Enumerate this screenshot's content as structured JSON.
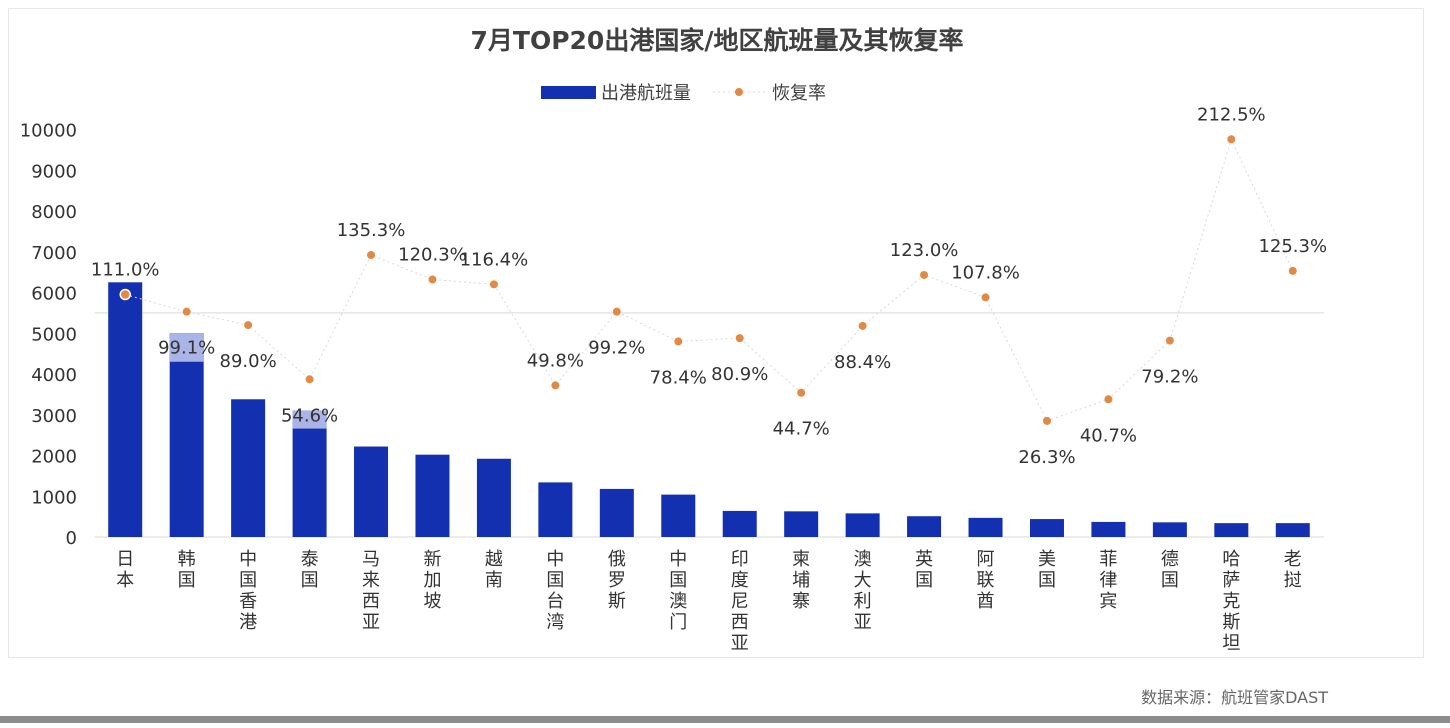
{
  "source_note": "数据来源：航班管家DAST",
  "chart_data": {
    "type": "bar",
    "title": "7月TOP20出港国家/地区航班量及其恢复率",
    "legend_position": "top",
    "grid": "y-reference-line",
    "ylim": [
      0,
      10000
    ],
    "y_ticks": [
      "0",
      "1000",
      "2000",
      "3000",
      "4000",
      "5000",
      "6000",
      "7000",
      "8000",
      "9000",
      "10000"
    ],
    "categories": [
      "日本",
      "韩国",
      "中国香港",
      "泰国",
      "马来西亚",
      "新加坡",
      "越南",
      "中国台湾",
      "俄罗斯",
      "中国澳门",
      "印度尼西亚",
      "柬埔寨",
      "澳大利亚",
      "英国",
      "阿联酋",
      "美国",
      "菲律宾",
      "德国",
      "哈萨克斯坦",
      "老挝"
    ],
    "series": [
      {
        "name": "出港航班量",
        "type": "bar",
        "color": "#1230b0",
        "values": [
          6250,
          5000,
          3380,
          3100,
          2220,
          2020,
          1920,
          1340,
          1180,
          1040,
          640,
          630,
          580,
          510,
          470,
          440,
          370,
          360,
          340,
          340
        ]
      },
      {
        "name": "恢复率",
        "type": "line",
        "color": "#e08a45",
        "positions": [
          5950,
          5530,
          5200,
          3870,
          6920,
          6320,
          6200,
          3720,
          5530,
          4800,
          4880,
          3540,
          5180,
          6430,
          5880,
          2850,
          3380,
          4820,
          9760,
          6530
        ],
        "values": [
          111.0,
          99.1,
          89.0,
          54.6,
          135.3,
          120.3,
          116.4,
          49.8,
          99.2,
          78.4,
          80.9,
          44.7,
          88.4,
          123.0,
          107.8,
          26.3,
          40.7,
          79.2,
          212.5,
          125.3
        ],
        "labels": [
          "111.0%",
          "99.1%",
          "89.0%",
          "54.6%",
          "135.3%",
          "120.3%",
          "116.4%",
          "49.8%",
          "99.2%",
          "78.4%",
          "80.9%",
          "44.7%",
          "88.4%",
          "123.0%",
          "107.8%",
          "26.3%",
          "40.7%",
          "79.2%",
          "212.5%",
          "125.3%"
        ]
      }
    ],
    "colors": {
      "bar": "#1230b0",
      "bar_highlight": "#aab4e6",
      "line": "#e08a45",
      "connector": "#d9d9d9",
      "title": "#404040",
      "axis_text": "#333333"
    }
  }
}
